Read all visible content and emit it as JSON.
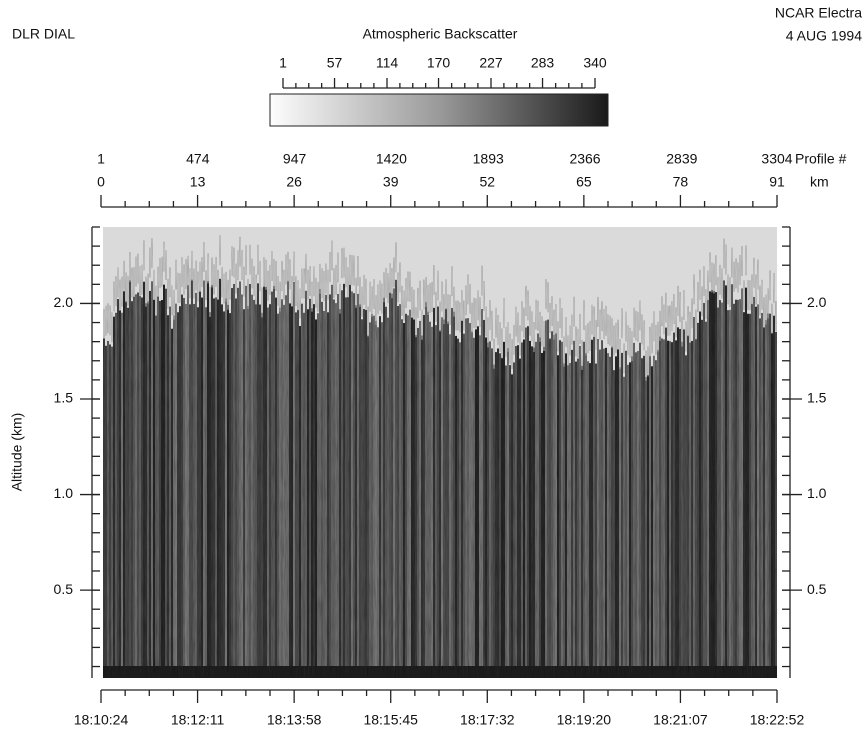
{
  "chart_data": {
    "type": "curtain",
    "title": "Atmospheric Backscatter",
    "instrument": "DLR DIAL",
    "aircraft": "NCAR Electra",
    "date": "4 AUG 1994",
    "clim": [
      1,
      340
    ],
    "cticks": [
      1,
      57,
      114,
      170,
      227,
      283,
      340
    ],
    "profile_label": "Profile #",
    "profile_lim": [
      1,
      3304
    ],
    "profile_ticks": [
      1,
      474,
      947,
      1420,
      1893,
      2366,
      2839,
      3304
    ],
    "km_label": "km",
    "xlim": [
      0,
      91
    ],
    "xticks": [
      0,
      13,
      26,
      39,
      52,
      65,
      78,
      91
    ],
    "time_ticks": [
      "18:10:24",
      "18:12:11",
      "18:13:58",
      "18:15:45",
      "18:17:32",
      "18:19:20",
      "18:21:07",
      "18:22:52"
    ],
    "ylabel": "Altitude (km)",
    "ylim": [
      0.04,
      2.4
    ],
    "yticks": [
      0.5,
      {
        "value": 1,
        "label": "1.0"
      },
      1.5,
      {
        "value": 2,
        "label": "2.0"
      }
    ]
  }
}
